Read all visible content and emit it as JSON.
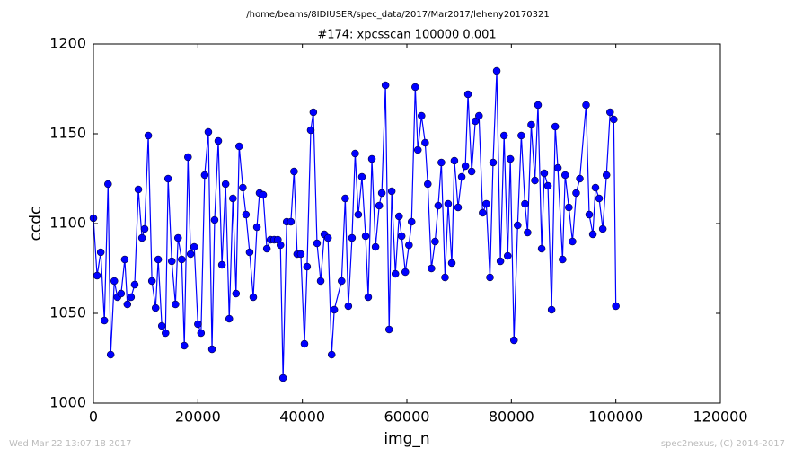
{
  "chart_data": {
    "type": "line",
    "path": "/home/beams/8IDIUSER/spec_data/2017/Mar2017/leheny20170321",
    "title": "#174: xpcsscan 100000 0.001",
    "xlabel": "img_n",
    "ylabel": "ccdc",
    "footer_left": "Wed Mar 22 13:07:18 2017",
    "footer_right": "spec2nexus, (C) 2014-2017",
    "xlim": [
      0,
      120000
    ],
    "xticks": [
      0,
      20000,
      40000,
      60000,
      80000,
      100000,
      120000
    ],
    "ylim": [
      1000,
      1200
    ],
    "yticks": [
      1000,
      1050,
      1100,
      1150,
      1200
    ],
    "color": "#0000ff",
    "marker": "circle",
    "x": [
      0,
      700,
      1400,
      2100,
      2800,
      3300,
      4000,
      4600,
      5300,
      6000,
      6500,
      7200,
      7900,
      8600,
      9300,
      9800,
      10500,
      11200,
      11900,
      12400,
      13100,
      13800,
      14300,
      15000,
      15700,
      16200,
      16900,
      17400,
      18100,
      18600,
      19300,
      20000,
      20600,
      21300,
      22000,
      22700,
      23200,
      23900,
      24600,
      25300,
      26000,
      26700,
      27300,
      27900,
      28600,
      29200,
      29900,
      30600,
      31300,
      31800,
      32500,
      33200,
      33900,
      34600,
      35300,
      35800,
      36300,
      37000,
      37800,
      38400,
      39000,
      39700,
      40400,
      40900,
      41600,
      42100,
      42800,
      43500,
      44200,
      44900,
      45600,
      46100,
      47500,
      48200,
      48800,
      49500,
      50100,
      50700,
      51400,
      52100,
      52600,
      53300,
      54000,
      54700,
      55200,
      55900,
      56600,
      57100,
      57800,
      58500,
      59000,
      59700,
      60400,
      60900,
      61600,
      62100,
      62800,
      63500,
      64000,
      64700,
      65400,
      66000,
      66600,
      67300,
      67900,
      68600,
      69100,
      69800,
      70500,
      71200,
      71700,
      72400,
      73100,
      73800,
      74500,
      75200,
      75900,
      76500,
      77200,
      77900,
      78600,
      79300,
      79800,
      80500,
      81200,
      81900,
      82600,
      83100,
      83800,
      84500,
      85100,
      85800,
      86300,
      87000,
      87700,
      88400,
      88900,
      89800,
      90300,
      91000,
      91700,
      92400,
      93100,
      94300,
      94900,
      95600,
      96100,
      96800,
      97500,
      98200,
      98900,
      99600,
      100000
    ],
    "values": [
      1103,
      1071,
      1084,
      1046,
      1122,
      1027,
      1068,
      1059,
      1061,
      1080,
      1055,
      1059,
      1066,
      1119,
      1092,
      1097,
      1149,
      1068,
      1053,
      1080,
      1043,
      1039,
      1125,
      1079,
      1055,
      1092,
      1080,
      1032,
      1137,
      1083,
      1087,
      1044,
      1039,
      1127,
      1151,
      1030,
      1102,
      1146,
      1077,
      1122,
      1047,
      1114,
      1061,
      1143,
      1120,
      1105,
      1084,
      1059,
      1098,
      1117,
      1116,
      1086,
      1091,
      1091,
      1091,
      1088,
      1014,
      1101,
      1101,
      1129,
      1083,
      1083,
      1033,
      1076,
      1152,
      1162,
      1089,
      1068,
      1094,
      1092,
      1027,
      1052,
      1068,
      1114,
      1054,
      1092,
      1139,
      1105,
      1126,
      1093,
      1059,
      1136,
      1087,
      1110,
      1117,
      1177,
      1041,
      1118,
      1072,
      1104,
      1093,
      1073,
      1088,
      1101,
      1176,
      1141,
      1160,
      1145,
      1122,
      1075,
      1090,
      1110,
      1134,
      1070,
      1111,
      1078,
      1135,
      1109,
      1126,
      1132,
      1172,
      1129,
      1157,
      1160,
      1106,
      1111,
      1070,
      1134,
      1185,
      1079,
      1149,
      1082,
      1136,
      1035,
      1099,
      1149,
      1111,
      1095,
      1155,
      1124,
      1166,
      1086,
      1128,
      1121,
      1052,
      1154,
      1131,
      1080,
      1127,
      1109,
      1090,
      1117,
      1125,
      1166,
      1105,
      1094,
      1120,
      1114,
      1097,
      1127,
      1162,
      1158,
      1054
    ]
  }
}
